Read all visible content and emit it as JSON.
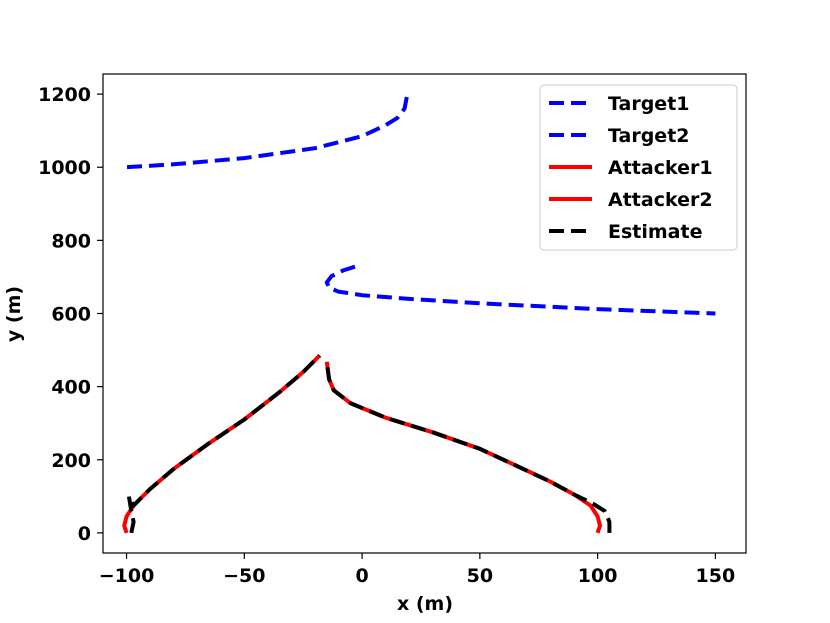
{
  "chart_data": {
    "type": "line",
    "title": "",
    "xlabel": "x (m)",
    "ylabel": "y (m)",
    "xlim": [
      -110,
      163
    ],
    "ylim": [
      -55,
      1255
    ],
    "xticks": [
      -100,
      -50,
      0,
      50,
      100,
      150
    ],
    "xtick_labels": [
      "−100",
      "−50",
      "0",
      "50",
      "100",
      "150"
    ],
    "yticks": [
      0,
      200,
      400,
      600,
      800,
      1000,
      1200
    ],
    "ytick_labels": [
      "0",
      "200",
      "400",
      "600",
      "800",
      "1000",
      "1200"
    ],
    "grid": false,
    "legend_position": "top-right",
    "series": [
      {
        "name": "Target1",
        "color": "#0000ff",
        "style": "dashed",
        "x": [
          19,
          18,
          15,
          10,
          0,
          -20,
          -50,
          -80,
          -100
        ],
        "y": [
          1192,
          1160,
          1135,
          1115,
          1085,
          1052,
          1025,
          1008,
          1000
        ]
      },
      {
        "name": "Target2",
        "color": "#0000ff",
        "style": "dashed",
        "x": [
          -3,
          -8,
          -13,
          -15,
          -14,
          -10,
          0,
          20,
          50,
          100,
          150
        ],
        "y": [
          728,
          718,
          702,
          685,
          670,
          660,
          650,
          640,
          628,
          612,
          600
        ]
      },
      {
        "name": "Attacker1",
        "color": "#ff0000",
        "style": "solid",
        "x": [
          -100,
          -101,
          -100,
          -97,
          -90,
          -80,
          -65,
          -50,
          -35,
          -25,
          -18
        ],
        "y": [
          0,
          20,
          45,
          75,
          120,
          175,
          245,
          310,
          385,
          440,
          485
        ]
      },
      {
        "name": "Attacker2",
        "color": "#ff0000",
        "style": "solid",
        "x": [
          100,
          101,
          100,
          97,
          90,
          80,
          65,
          50,
          30,
          10,
          -5,
          -12,
          -14,
          -15
        ],
        "y": [
          0,
          20,
          45,
          75,
          105,
          140,
          185,
          230,
          275,
          315,
          355,
          390,
          420,
          468
        ]
      },
      {
        "name": "Estimate",
        "color": "#000000",
        "style": "dashed",
        "segments": [
          {
            "x": [
              -98,
              -97,
              -98,
              -99,
              -97,
              -90,
              -80,
              -65,
              -50,
              -35,
              -25,
              -18
            ],
            "y": [
              0,
              30,
              60,
              100,
              75,
              120,
              175,
              245,
              310,
              385,
              440,
              485
            ]
          },
          {
            "x": [
              105,
              105,
              103,
              98,
              90,
              80,
              65,
              50,
              30,
              10,
              -5,
              -12,
              -14,
              -15
            ],
            "y": [
              0,
              30,
              60,
              80,
              105,
              140,
              185,
              230,
              275,
              315,
              355,
              390,
              420,
              468
            ]
          }
        ]
      }
    ],
    "legend": [
      {
        "label": "Target1",
        "color": "#0000ff",
        "style": "dashed"
      },
      {
        "label": "Target2",
        "color": "#0000ff",
        "style": "dashed"
      },
      {
        "label": "Attacker1",
        "color": "#ff0000",
        "style": "solid"
      },
      {
        "label": "Attacker2",
        "color": "#ff0000",
        "style": "solid"
      },
      {
        "label": "Estimate",
        "color": "#000000",
        "style": "dashed"
      }
    ]
  }
}
